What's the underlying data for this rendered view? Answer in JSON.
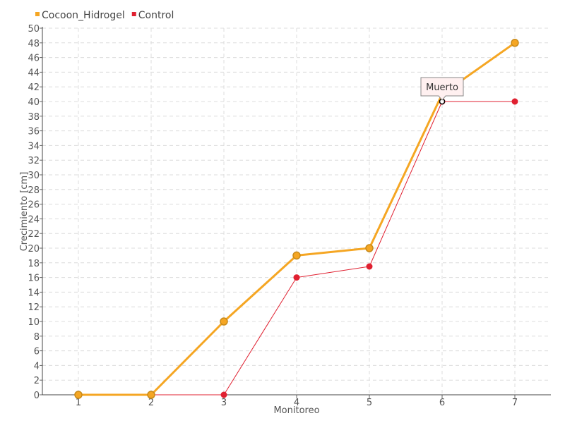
{
  "chart_data": {
    "type": "line",
    "categories": [
      "1",
      "2",
      "3",
      "4",
      "5",
      "6",
      "7"
    ],
    "xlabel": "Monitoreo",
    "ylabel": "Crecimiento [cm]",
    "ylim": [
      0,
      50
    ],
    "ytick_step": 2,
    "grid": true,
    "legend_position": "top-left",
    "series": [
      {
        "name": "Cocoon_Hidrogel",
        "color": "#f5a623",
        "values": [
          0,
          0,
          10,
          19,
          20,
          41,
          48
        ]
      },
      {
        "name": "Control",
        "color": "#e02030",
        "values": [
          0,
          0,
          0,
          16,
          17.5,
          40,
          40
        ]
      }
    ],
    "annotations": [
      {
        "text": "Muerto",
        "series": "Control",
        "category": "6",
        "value": 40
      }
    ]
  }
}
